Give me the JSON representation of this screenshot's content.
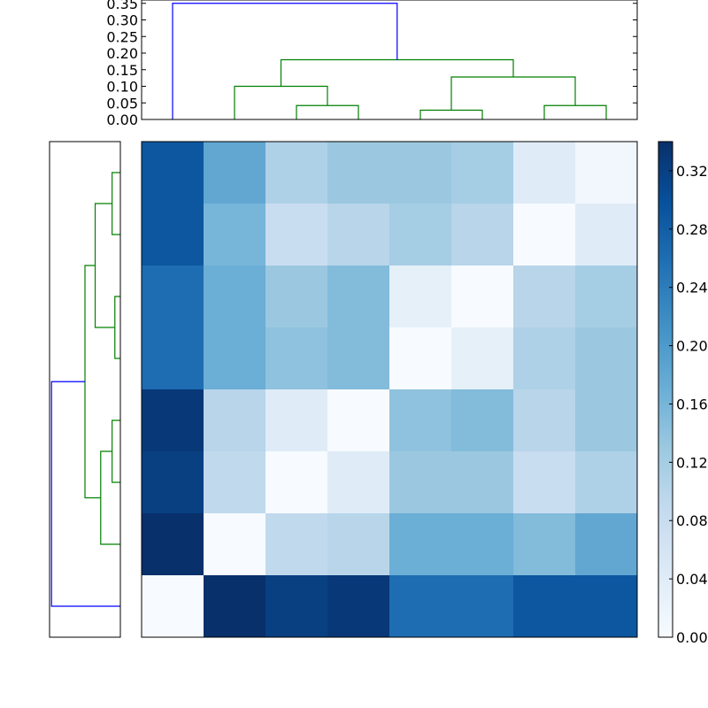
{
  "colors": {
    "primary_link": "#0000ff",
    "cluster_link": "#008000",
    "cmap_low": "#f7fbff",
    "cmap_high": "#08306b"
  },
  "chart_data": [
    {
      "type": "dendrogram",
      "orientation": "top",
      "ylim": [
        0,
        0.36
      ],
      "yticks": [
        "0.00",
        "0.05",
        "0.10",
        "0.15",
        "0.20",
        "0.25",
        "0.30",
        "0.35"
      ],
      "leaf_count": 8,
      "links": [
        {
          "left": 4.5,
          "right": 5.5,
          "left_height": 0,
          "right_height": 0,
          "height": 0.028,
          "color": "green"
        },
        {
          "left": 2.5,
          "right": 3.5,
          "left_height": 0,
          "right_height": 0,
          "height": 0.042,
          "color": "green"
        },
        {
          "left": 6.5,
          "right": 7.5,
          "left_height": 0,
          "right_height": 0,
          "height": 0.042,
          "color": "green"
        },
        {
          "left": 1.5,
          "right": 3.0,
          "left_height": 0,
          "right_height": 0.042,
          "height": 0.1,
          "color": "green"
        },
        {
          "left": 5.0,
          "right": 7.0,
          "left_height": 0.028,
          "right_height": 0.042,
          "height": 0.128,
          "color": "green"
        },
        {
          "left": 2.25,
          "right": 6.0,
          "left_height": 0.1,
          "right_height": 0.128,
          "height": 0.18,
          "color": "green"
        },
        {
          "left": 0.5,
          "right": 4.125,
          "left_height": 0,
          "right_height": 0.18,
          "height": 0.35,
          "color": "blue"
        }
      ]
    },
    {
      "type": "dendrogram",
      "orientation": "left",
      "xlim": [
        0,
        0.36
      ],
      "leaf_count": 8,
      "links": [
        {
          "left": 0.5,
          "right": 1.5,
          "left_height": 0,
          "right_height": 0,
          "height": 0.042,
          "color": "green"
        },
        {
          "left": 2.5,
          "right": 3.5,
          "left_height": 0,
          "right_height": 0,
          "height": 0.028,
          "color": "green"
        },
        {
          "left": 4.5,
          "right": 5.5,
          "left_height": 0,
          "right_height": 0,
          "height": 0.042,
          "color": "green"
        },
        {
          "left": 1.0,
          "right": 3.0,
          "left_height": 0.042,
          "right_height": 0.028,
          "height": 0.128,
          "color": "green"
        },
        {
          "left": 5.0,
          "right": 6.5,
          "left_height": 0.042,
          "right_height": 0,
          "height": 0.1,
          "color": "green"
        },
        {
          "left": 2.0,
          "right": 5.75,
          "left_height": 0.128,
          "right_height": 0.1,
          "height": 0.18,
          "color": "green"
        },
        {
          "left": 3.875,
          "right": 7.5,
          "left_height": 0.18,
          "right_height": 0,
          "height": 0.35,
          "color": "blue"
        }
      ]
    },
    {
      "type": "heatmap",
      "rows": 8,
      "cols": 8,
      "vmin": 0,
      "vmax": 0.34,
      "values": [
        [
          0.29,
          0.18,
          0.11,
          0.13,
          0.13,
          0.12,
          0.04,
          0.01
        ],
        [
          0.29,
          0.16,
          0.08,
          0.1,
          0.12,
          0.1,
          0.0,
          0.04
        ],
        [
          0.26,
          0.17,
          0.13,
          0.15,
          0.03,
          0.0,
          0.1,
          0.12
        ],
        [
          0.26,
          0.17,
          0.14,
          0.15,
          0.0,
          0.03,
          0.11,
          0.13
        ],
        [
          0.33,
          0.1,
          0.04,
          0.0,
          0.14,
          0.15,
          0.1,
          0.13
        ],
        [
          0.32,
          0.09,
          0.0,
          0.04,
          0.13,
          0.13,
          0.08,
          0.11
        ],
        [
          0.34,
          0.0,
          0.09,
          0.1,
          0.17,
          0.17,
          0.15,
          0.18
        ],
        [
          0.0,
          0.34,
          0.32,
          0.33,
          0.26,
          0.26,
          0.29,
          0.29
        ]
      ]
    },
    {
      "type": "colorbar",
      "ylim": [
        0,
        0.34
      ],
      "ticks": [
        "0.00",
        "0.04",
        "0.08",
        "0.12",
        "0.16",
        "0.20",
        "0.24",
        "0.28",
        "0.32"
      ]
    }
  ]
}
